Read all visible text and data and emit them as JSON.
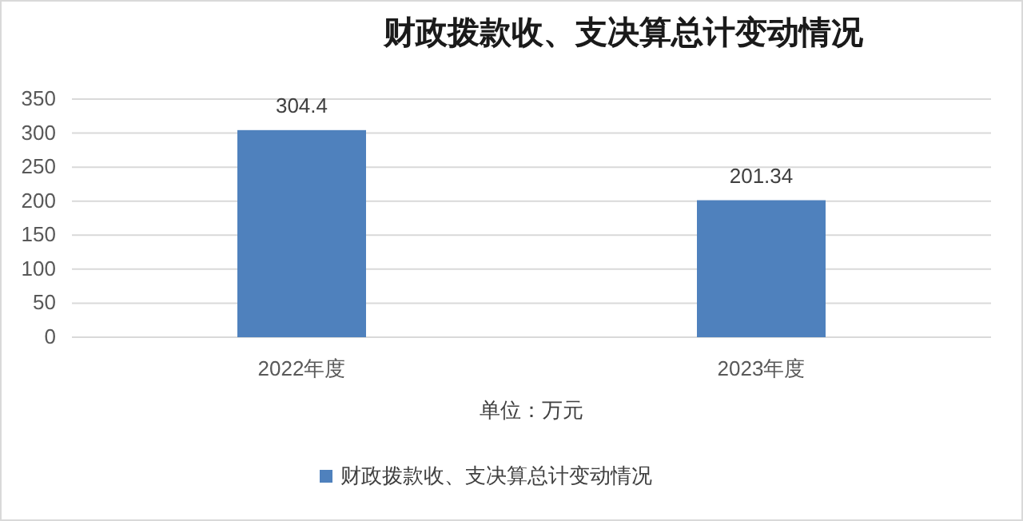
{
  "chart_data": {
    "type": "bar",
    "title": "财政拨款收、支决算总计变动情况",
    "xlabel": "单位：万元",
    "categories": [
      "2022年度",
      "2023年度"
    ],
    "series": [
      {
        "name": "财政拨款收、支决算总计变动情况",
        "color": "#4f81bd",
        "values": [
          304.4,
          201.34
        ]
      }
    ],
    "ylim": [
      0,
      350
    ],
    "yticks": [
      0,
      50,
      100,
      150,
      200,
      250,
      300,
      350
    ],
    "grid": "y",
    "legend": "bottom",
    "data_labels": true
  }
}
